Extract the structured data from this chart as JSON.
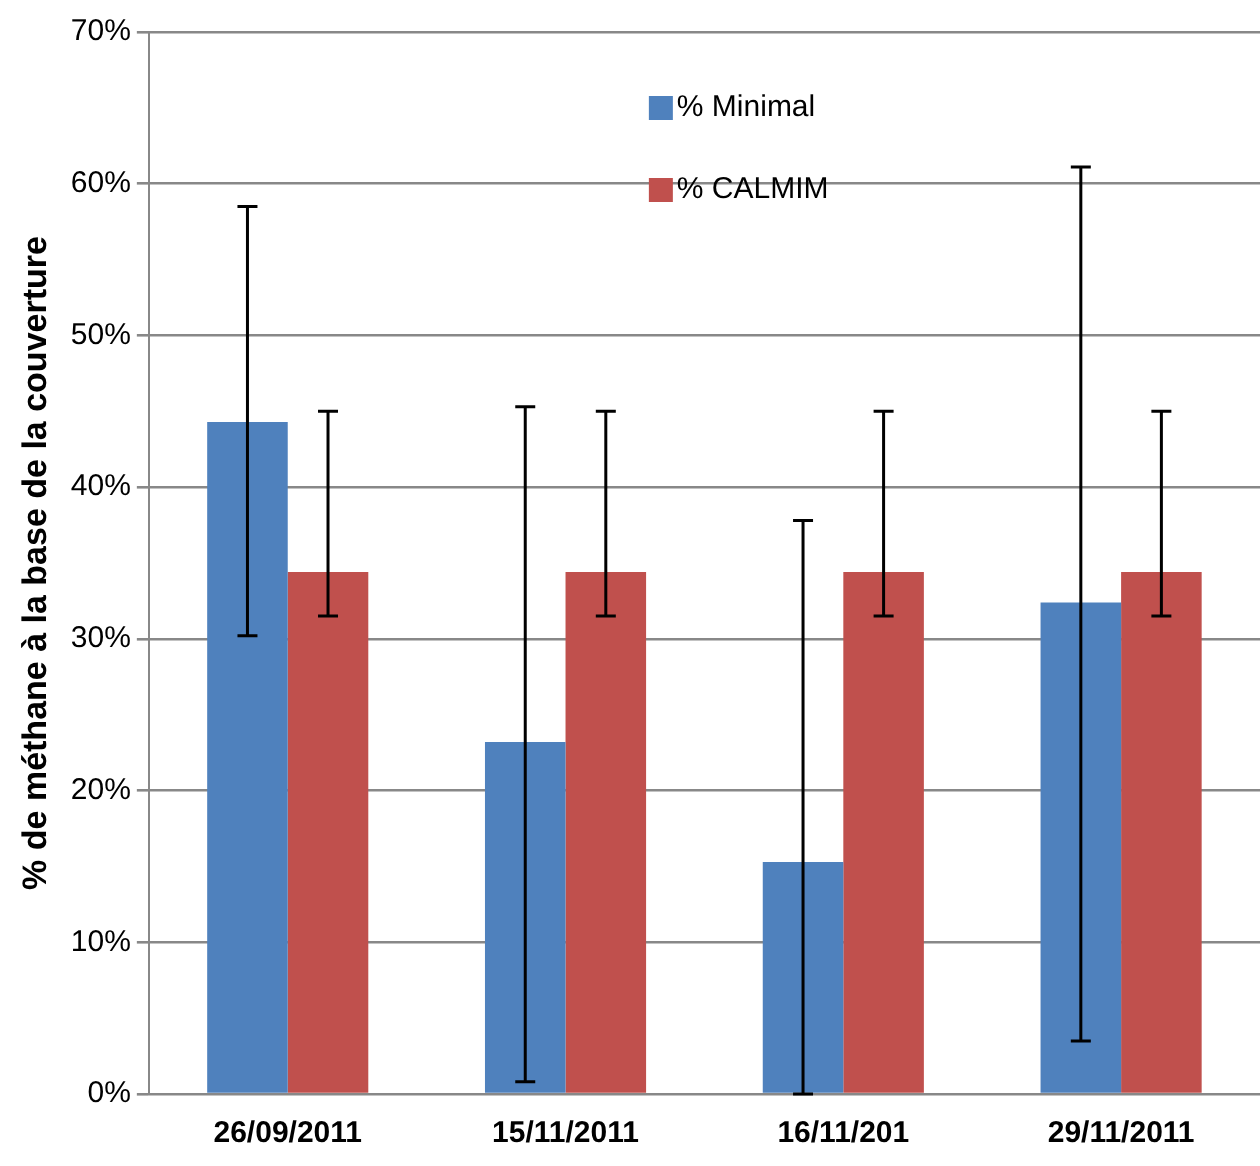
{
  "chart_data": {
    "type": "bar",
    "ylabel": "% de méthane à la base de la couverture",
    "categories": [
      "26/09/2011",
      "15/11/2011",
      "16/11/201",
      "29/11/2011"
    ],
    "series": [
      {
        "name": "% Minimal",
        "color": "#4f81bd",
        "values": [
          44.3,
          23.2,
          15.3,
          32.4
        ],
        "errors": [
          [
            30.2,
            58.5
          ],
          [
            0.8,
            45.3
          ],
          [
            0,
            37.8
          ],
          [
            3.5,
            61.1
          ]
        ]
      },
      {
        "name": "% CALMIM",
        "color": "#c0504d",
        "values": [
          34.4,
          34.4,
          34.4,
          34.4
        ],
        "errors": [
          [
            31.5,
            45
          ],
          [
            31.5,
            45
          ],
          [
            31.5,
            45
          ],
          [
            31.5,
            45
          ]
        ]
      }
    ],
    "ylim": [
      0,
      70
    ],
    "yticks": [
      {
        "value": 0,
        "label": "0%"
      },
      {
        "value": 10,
        "label": "10%"
      },
      {
        "value": 20,
        "label": "20%"
      },
      {
        "value": 30,
        "label": "30%"
      },
      {
        "value": 40,
        "label": "40%"
      },
      {
        "value": 50,
        "label": "50%"
      },
      {
        "value": 60,
        "label": "60%"
      },
      {
        "value": 70,
        "label": "70%"
      }
    ],
    "grid": "y",
    "legend": "top"
  }
}
